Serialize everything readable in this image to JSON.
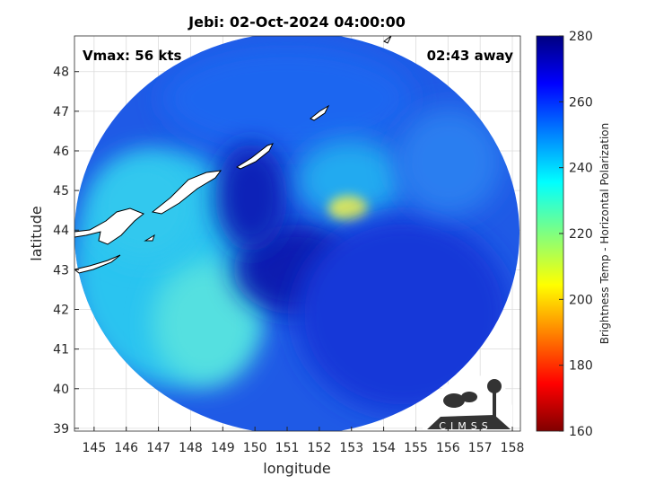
{
  "chart_data": {
    "type": "image",
    "title": "Jebi: 02-Oct-2024 04:00:00",
    "annotations": [
      "Vmax: 56 kts",
      "02:43 away"
    ],
    "x_label": "longitude",
    "y_label": "latitude",
    "xlim": [
      144.39,
      158.25
    ],
    "ylim": [
      38.93,
      48.9
    ],
    "xticks": [
      145,
      146,
      147,
      148,
      149,
      150,
      151,
      152,
      153,
      154,
      155,
      156,
      157,
      158
    ],
    "yticks": [
      39,
      40,
      41,
      42,
      43,
      44,
      45,
      46,
      47,
      48
    ],
    "grid": true,
    "colorbar": {
      "label": "Brightness Temp - Horizontal Polarization",
      "clim": [
        160,
        280
      ],
      "ticks": [
        160,
        180,
        200,
        220,
        240,
        260,
        280
      ]
    },
    "logo": "CIMSS"
  }
}
